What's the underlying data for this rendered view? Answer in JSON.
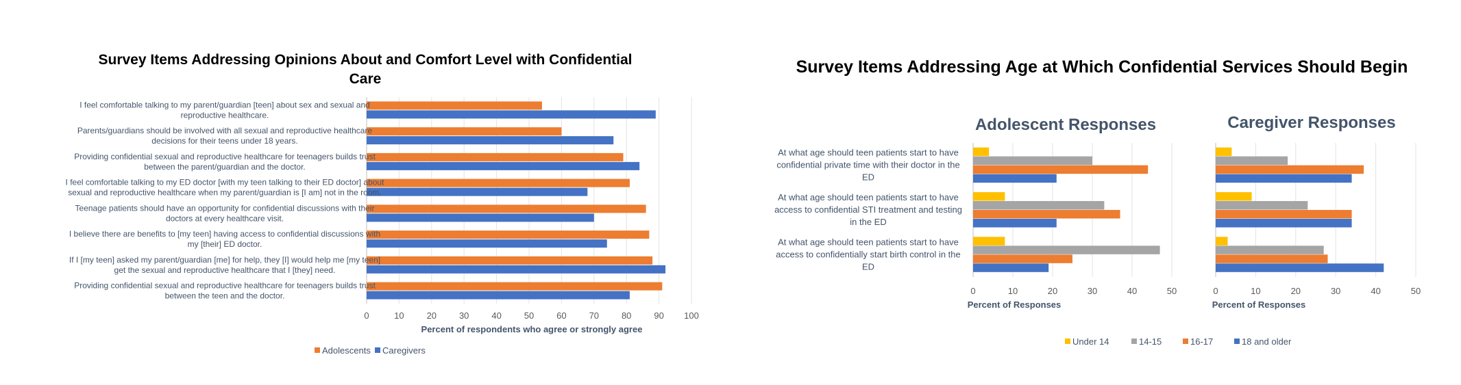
{
  "chart_data": [
    {
      "type": "bar",
      "orientation": "horizontal",
      "title": "Survey Items Addressing Opinions About and Comfort Level with Confidential Care",
      "title_lines": [
        "Survey Items Addressing Opinions About and Comfort Level with Confidential",
        "Care"
      ],
      "categories": [
        "I feel comfortable talking to my parent/guardian [teen] about sex and sexual and reproductive healthcare.",
        "Parents/guardians should be involved with all sexual and reproductive healthcare decisions for their teens under 18 years.",
        "Providing confidential sexual and reproductive healthcare for teenagers builds trust between the parent/guardian and the doctor.",
        "I feel comfortable talking to my ED doctor [with my teen talking to their ED doctor] about sexual and reproductive healthcare when my parent/guardian is [I am] not in the room.",
        "Teenage patients should have an opportunity for confidential discussions with their doctors at every healthcare visit.",
        "I believe there are benefits to [my teen] having access to confidential discussions with my [their] ED doctor.",
        "If I [my teen] asked my parent/guardian [me] for help, they [I] would help me [my teen] get the sexual and reproductive healthcare that I [they] need.",
        "Providing confidential sexual and reproductive healthcare for teenagers builds trust between the teen and the doctor."
      ],
      "category_lines": [
        [
          "I feel comfortable talking to my parent/guardian [teen] about sex and sexual and",
          "reproductive healthcare."
        ],
        [
          "Parents/guardians should be involved with all sexual and reproductive healthcare",
          "decisions for their teens under 18 years."
        ],
        [
          "Providing confidential sexual and reproductive healthcare for teenagers builds trust",
          "between the parent/guardian and the doctor."
        ],
        [
          "I feel comfortable talking to my ED doctor [with my teen talking to their ED doctor] about",
          "sexual and reproductive healthcare when my parent/guardian is [I am] not in the room."
        ],
        [
          "Teenage patients should have an opportunity for confidential discussions with their",
          "doctors at every healthcare visit."
        ],
        [
          "I believe there are benefits to [my teen] having access to confidential discussions with",
          "my [their] ED doctor."
        ],
        [
          "If I [my teen] asked my parent/guardian [me] for help, they [I] would help me [my teen]",
          "get the sexual and reproductive healthcare that I [they] need."
        ],
        [
          "Providing confidential sexual and reproductive healthcare for teenagers builds trust",
          "between the teen and the doctor."
        ]
      ],
      "series": [
        {
          "name": "Adolescents",
          "color": "#ed7d31",
          "values": [
            54,
            60,
            79,
            81,
            86,
            87,
            88,
            91
          ]
        },
        {
          "name": "Caregivers",
          "color": "#4472c4",
          "values": [
            89,
            76,
            84,
            68,
            70,
            74,
            92,
            81
          ]
        }
      ],
      "xlabel": "Percent of respondents who agree or strongly agree",
      "xlim": [
        0,
        100
      ],
      "xticks": [
        0,
        10,
        20,
        30,
        40,
        50,
        60,
        70,
        80,
        90,
        100
      ],
      "grid": true,
      "legend": "bottom"
    },
    {
      "type": "bar",
      "orientation": "horizontal",
      "title": "Survey Items Addressing Age at Which Confidential Services Should Begin",
      "categories": [
        "At what age should teen patients start to have confidential private time with their doctor in the ED",
        "At what age should teen patients start to have access to confidential STI treatment and testing in the ED",
        "At what age should teen patients start to have access to confidentially start birth control in the ED"
      ],
      "category_lines": [
        [
          "At what age should teen patients start to have",
          "confidential private time with their doctor in the",
          "ED"
        ],
        [
          "At what age should teen patients start to have",
          "access to confidential STI treatment and testing",
          "in the ED"
        ],
        [
          "At what age should teen patients start to have",
          "access to confidentially start birth control in the",
          "ED"
        ]
      ],
      "series_names": [
        "Under 14",
        "14-15",
        "16-17",
        "18 and older"
      ],
      "series_colors": [
        "#ffc000",
        "#a5a5a5",
        "#ed7d31",
        "#4472c4"
      ],
      "panels": [
        {
          "title": "Adolescent Responses",
          "values": [
            [
              4,
              30,
              44,
              21
            ],
            [
              8,
              33,
              37,
              21
            ],
            [
              8,
              47,
              25,
              19
            ]
          ]
        },
        {
          "title": "Caregiver Responses",
          "values": [
            [
              4,
              18,
              37,
              34
            ],
            [
              9,
              23,
              34,
              34
            ],
            [
              3,
              27,
              28,
              42
            ]
          ]
        }
      ],
      "xlabel": "Percent of Responses",
      "xlim": [
        0,
        50
      ],
      "xticks": [
        0,
        10,
        20,
        30,
        40,
        50
      ],
      "grid": true,
      "legend": "bottom"
    }
  ]
}
